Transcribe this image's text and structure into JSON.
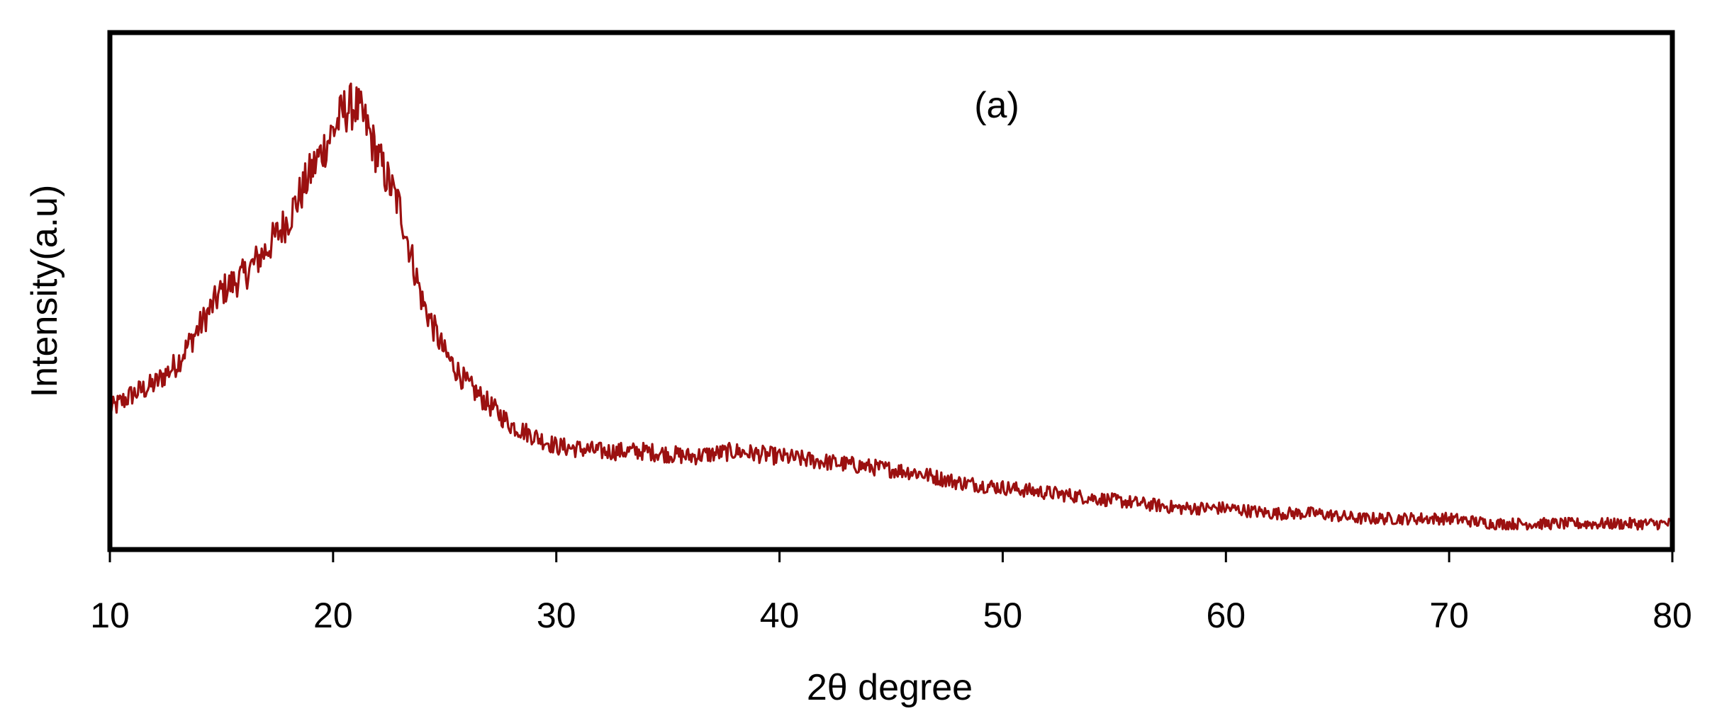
{
  "chart_data": {
    "type": "line",
    "title": "",
    "annotation": "(a)",
    "xlabel": "2θ degree",
    "ylabel": "Intensity(a.u)",
    "xlim": [
      10,
      80
    ],
    "ylim": [
      0,
      100
    ],
    "x_ticks": [
      10,
      20,
      30,
      40,
      50,
      60,
      70,
      80
    ],
    "x_tick_labels": [
      "10",
      "20",
      "30",
      "40",
      "50",
      "60",
      "70",
      "80"
    ],
    "y_ticks_shown": false,
    "grid": false,
    "legend": "none",
    "colors": {
      "series": "#9b1010",
      "frame": "#000000"
    },
    "series": [
      {
        "x": [
          10,
          11,
          12,
          13,
          14,
          15,
          16,
          17,
          18,
          19,
          20,
          20.5,
          21,
          21.5,
          22,
          23,
          24,
          25,
          26,
          27,
          28,
          29,
          30,
          32,
          34,
          36,
          38,
          40,
          42,
          44,
          46,
          48,
          50,
          52,
          54,
          56,
          58,
          60,
          62,
          64,
          66,
          68,
          70,
          72,
          74,
          76,
          78,
          80
        ],
        "values": [
          27,
          30,
          32,
          36,
          43,
          50,
          53,
          58,
          64,
          73,
          81,
          85,
          86,
          82,
          76,
          66,
          48,
          38,
          32,
          28,
          24,
          22,
          20,
          19,
          19,
          18,
          19,
          18,
          17,
          16,
          15,
          13,
          12,
          11,
          10,
          9,
          8,
          8,
          7,
          7,
          6,
          6,
          6,
          5,
          5,
          5,
          5,
          5
        ]
      }
    ]
  }
}
